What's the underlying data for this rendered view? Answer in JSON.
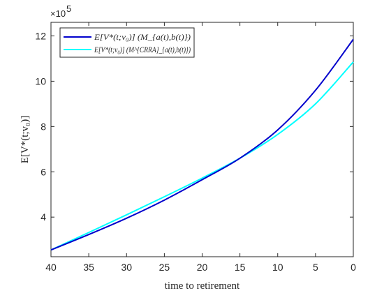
{
  "chart_data": {
    "type": "line",
    "xlabel": "time to retirement",
    "ylabel": "E[V*(t;v₀)]",
    "x_reversed": true,
    "xlim": [
      0,
      40
    ],
    "ylim": [
      2.25,
      12.6
    ],
    "y_scale_label": "×10",
    "y_scale_exponent": "5",
    "xticks": [
      40,
      35,
      30,
      25,
      20,
      15,
      10,
      5,
      0
    ],
    "yticks": [
      4,
      6,
      8,
      10,
      12
    ],
    "grid": false,
    "legend_position": "top-left",
    "series": [
      {
        "name": "E[V*(t;v₀)] (M_{a(t),b(t)})",
        "color": "#0000cc",
        "x": [
          40,
          35,
          30,
          25,
          20,
          15,
          10,
          5,
          0
        ],
        "y": [
          2.55,
          3.23,
          3.95,
          4.75,
          5.65,
          6.6,
          7.85,
          9.6,
          11.85
        ]
      },
      {
        "name": "E[V*(t;v₀)] (M^{CRRA}_{a(t),b(t)})",
        "color": "#00ffff",
        "x": [
          40,
          35,
          30,
          25,
          20,
          15,
          10,
          5,
          0
        ],
        "y": [
          2.55,
          3.32,
          4.1,
          4.9,
          5.72,
          6.6,
          7.65,
          9.0,
          10.85
        ]
      }
    ]
  }
}
